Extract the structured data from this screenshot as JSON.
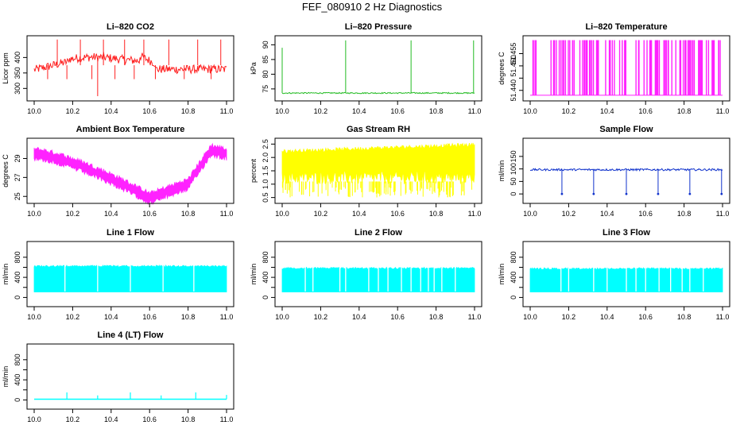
{
  "title": "FEF_080910  2 Hz Diagnostics",
  "chart_data": [
    {
      "type": "line",
      "title": "Li–820 CO2",
      "ylabel": "Licor ppm",
      "color": "#ff1f1f",
      "xlim": [
        10.0,
        11.0
      ],
      "ylim": [
        270,
        460
      ],
      "x_ticks": [
        "10.0",
        "10.2",
        "10.4",
        "10.6",
        "10.8",
        "11.0"
      ],
      "y_ticks": [
        {
          "v": 300,
          "label": "300"
        },
        {
          "v": 350,
          "label": "350"
        },
        {
          "v": 400,
          "label": "400"
        }
      ],
      "series": [
        {
          "shape": "co2"
        }
      ]
    },
    {
      "type": "line",
      "title": "Li–820 Pressure",
      "ylabel": "kPa",
      "color": "#22bb22",
      "xlim": [
        10.0,
        11.0
      ],
      "ylim": [
        72,
        92
      ],
      "x_ticks": [
        "10.0",
        "10.2",
        "10.4",
        "10.6",
        "10.8",
        "11.0"
      ],
      "y_ticks": [
        {
          "v": 75,
          "label": "75"
        },
        {
          "v": 80,
          "label": "80"
        },
        {
          "v": 85,
          "label": "85"
        },
        {
          "v": 90,
          "label": "90"
        }
      ],
      "series": [
        {
          "shape": "pressure"
        }
      ]
    },
    {
      "type": "line",
      "title": "Li–820 Temperature",
      "ylabel": "degrees C",
      "color": "#ff22ff",
      "xlim": [
        10.0,
        11.0
      ],
      "ylim": [
        51.437,
        51.461
      ],
      "x_ticks": [
        "10.0",
        "10.2",
        "10.4",
        "10.6",
        "10.8",
        "11.0"
      ],
      "y_ticks": [
        {
          "v": 51.44,
          "label": "51.440"
        },
        {
          "v": 51.445,
          "label": ""
        },
        {
          "v": 51.45,
          "label": "51.450"
        },
        {
          "v": 51.455,
          "label": "51.455"
        }
      ],
      "series": [
        {
          "shape": "licortemp"
        }
      ]
    },
    {
      "type": "line",
      "title": "Ambient Box Temperature",
      "ylabel": "degrees C",
      "color": "#ff22ff",
      "xlim": [
        10.0,
        11.0
      ],
      "ylim": [
        24.6,
        30.8
      ],
      "x_ticks": [
        "10.0",
        "10.2",
        "10.4",
        "10.6",
        "10.8",
        "11.0"
      ],
      "y_ticks": [
        {
          "v": 25,
          "label": "25"
        },
        {
          "v": 27,
          "label": "27"
        },
        {
          "v": 29,
          "label": "29"
        }
      ],
      "series": [
        {
          "shape": "ambient"
        }
      ]
    },
    {
      "type": "area",
      "title": "Gas Stream RH",
      "ylabel": "percent",
      "color": "#ffff00",
      "xlim": [
        10.0,
        11.0
      ],
      "ylim": [
        0.4,
        2.6
      ],
      "x_ticks": [
        "10.0",
        "10.2",
        "10.4",
        "10.6",
        "10.8",
        "11.0"
      ],
      "y_ticks": [
        {
          "v": 0.5,
          "label": "0.5"
        },
        {
          "v": 1.0,
          "label": "1.0"
        },
        {
          "v": 1.5,
          "label": "1.5"
        },
        {
          "v": 2.0,
          "label": "2.0"
        },
        {
          "v": 2.5,
          "label": "2.5"
        }
      ],
      "series": [
        {
          "shape": "rh"
        }
      ]
    },
    {
      "type": "line",
      "title": "Sample Flow",
      "ylabel": "ml/min",
      "color": "#1133cc",
      "xlim": [
        10.0,
        11.0
      ],
      "ylim": [
        -25,
        210
      ],
      "x_ticks": [
        "10.0",
        "10.2",
        "10.4",
        "10.6",
        "10.8",
        "11.0"
      ],
      "y_ticks": [
        {
          "v": 0,
          "label": "0"
        },
        {
          "v": 50,
          "label": "50"
        },
        {
          "v": 100,
          "label": "100"
        },
        {
          "v": 150,
          "label": "150"
        }
      ],
      "series": [
        {
          "shape": "sample"
        }
      ]
    },
    {
      "type": "area",
      "title": "Line 1 Flow",
      "ylabel": "ml/min",
      "color": "#00ffff",
      "xlim": [
        10.0,
        11.0
      ],
      "ylim": [
        -120,
        1050
      ],
      "x_ticks": [
        "10.0",
        "10.2",
        "10.4",
        "10.6",
        "10.8",
        "11.0"
      ],
      "y_ticks": [
        {
          "v": 0,
          "label": "0"
        },
        {
          "v": 200,
          "label": ""
        },
        {
          "v": 400,
          "label": "400"
        },
        {
          "v": 600,
          "label": ""
        },
        {
          "v": 800,
          "label": "800"
        }
      ],
      "series": [
        {
          "shape": "flow",
          "top": 640,
          "bottom": 110,
          "gaps": [
            10.16,
            10.33,
            10.5,
            10.67,
            10.83
          ]
        }
      ]
    },
    {
      "type": "area",
      "title": "Line 2 Flow",
      "ylabel": "ml/min",
      "color": "#00ffff",
      "xlim": [
        10.0,
        11.0
      ],
      "ylim": [
        -120,
        1050
      ],
      "x_ticks": [
        "10.0",
        "10.2",
        "10.4",
        "10.6",
        "10.8",
        "11.0"
      ],
      "y_ticks": [
        {
          "v": 0,
          "label": "0"
        },
        {
          "v": 200,
          "label": ""
        },
        {
          "v": 400,
          "label": "400"
        },
        {
          "v": 600,
          "label": ""
        },
        {
          "v": 800,
          "label": "800"
        }
      ],
      "series": [
        {
          "shape": "flow",
          "top": 600,
          "bottom": 110,
          "gaps": [
            10.12,
            10.16,
            10.3,
            10.33,
            10.45,
            10.5,
            10.55,
            10.62,
            10.67,
            10.72,
            10.76,
            10.79,
            10.83,
            10.9
          ]
        }
      ]
    },
    {
      "type": "area",
      "title": "Line 3 Flow",
      "ylabel": "ml/min",
      "color": "#00ffff",
      "xlim": [
        10.0,
        11.0
      ],
      "ylim": [
        -120,
        1050
      ],
      "x_ticks": [
        "10.0",
        "10.2",
        "10.4",
        "10.6",
        "10.8",
        "11.0"
      ],
      "y_ticks": [
        {
          "v": 0,
          "label": "0"
        },
        {
          "v": 200,
          "label": ""
        },
        {
          "v": 400,
          "label": "400"
        },
        {
          "v": 600,
          "label": ""
        },
        {
          "v": 800,
          "label": "800"
        }
      ],
      "series": [
        {
          "shape": "flow",
          "top": 590,
          "bottom": 110,
          "gaps": [
            10.16,
            10.2,
            10.33,
            10.4,
            10.5,
            10.55,
            10.6,
            10.67,
            10.73,
            10.79,
            10.83,
            10.9
          ]
        }
      ]
    },
    {
      "type": "line",
      "title": "Line 4 (LT) Flow",
      "ylabel": "ml/min",
      "color": "#00ffff",
      "xlim": [
        10.0,
        11.0
      ],
      "ylim": [
        -120,
        1050
      ],
      "x_ticks": [
        "10.0",
        "10.2",
        "10.4",
        "10.6",
        "10.8",
        "11.0"
      ],
      "y_ticks": [
        {
          "v": 0,
          "label": "0"
        },
        {
          "v": 200,
          "label": ""
        },
        {
          "v": 400,
          "label": "400"
        },
        {
          "v": 600,
          "label": ""
        },
        {
          "v": 800,
          "label": "800"
        }
      ],
      "series": [
        {
          "shape": "lt",
          "baseline": 15,
          "spikes": [
            {
              "x": 10.17,
              "y": 150
            },
            {
              "x": 10.33,
              "y": 90
            },
            {
              "x": 10.5,
              "y": 150
            },
            {
              "x": 10.66,
              "y": 90
            },
            {
              "x": 10.84,
              "y": 150
            },
            {
              "x": 11.0,
              "y": 100
            }
          ]
        }
      ]
    }
  ]
}
